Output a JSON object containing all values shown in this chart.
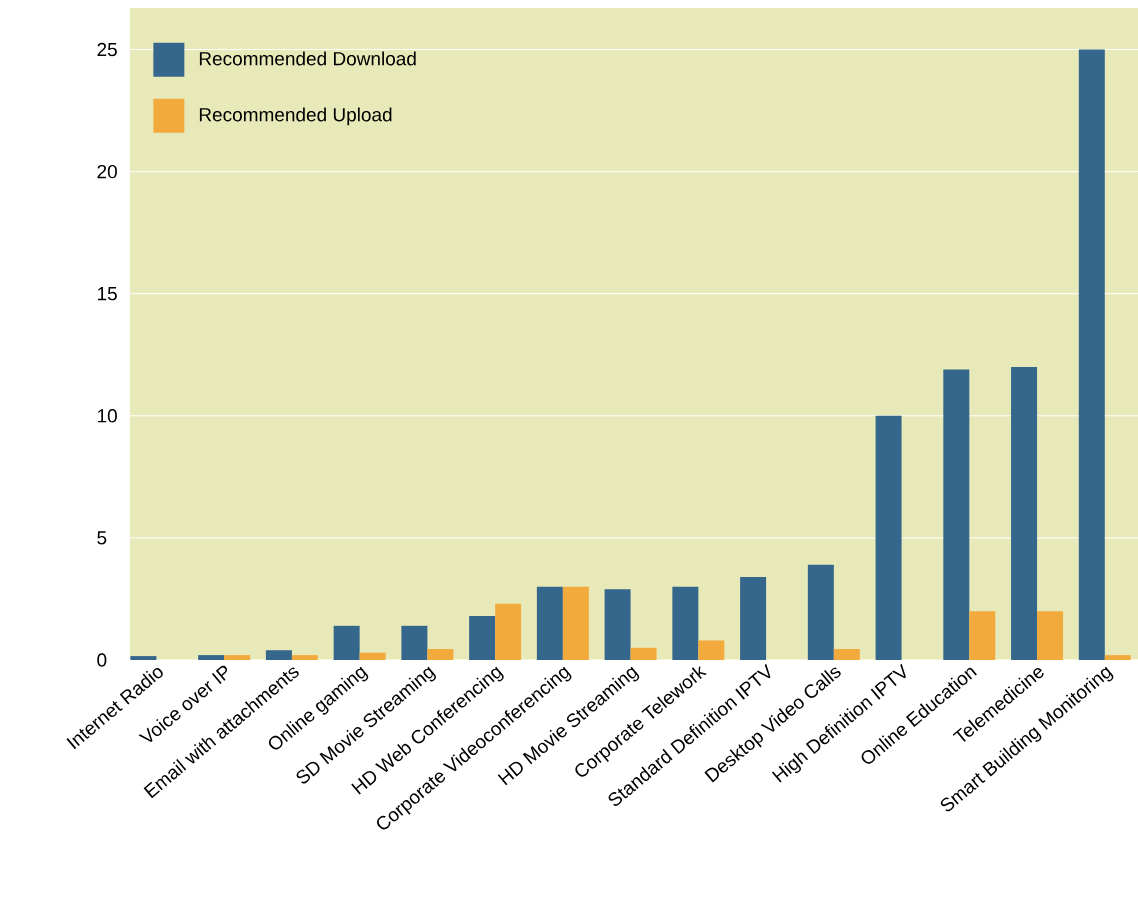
{
  "chart_data": {
    "type": "bar",
    "categories": [
      "Internet Radio",
      "Voice over IP",
      "Email with attachments",
      "Online gaming",
      "SD Movie Streaming",
      "HD Web Conferencing",
      "Corporate Videoconferencing",
      "HD Movie Streaming",
      "Corporate Telework",
      "Standard Definition IPTV",
      "Desktop Video Calls",
      "High Definition IPTV",
      "Online Education",
      "Telemedicine",
      "Smart Building Monitoring"
    ],
    "series": [
      {
        "name": "Recommended Download",
        "color": "#35668c",
        "values": [
          0.16,
          0.2,
          0.4,
          1.4,
          1.4,
          1.8,
          3.0,
          2.9,
          3.0,
          3.4,
          3.9,
          10,
          11.9,
          12,
          25
        ]
      },
      {
        "name": "Recommended Upload",
        "color": "#f3aa3d",
        "values": [
          null,
          0.2,
          0.2,
          0.3,
          0.45,
          2.3,
          3.0,
          0.5,
          0.8,
          null,
          0.45,
          null,
          2.0,
          2.0,
          0.2
        ]
      }
    ],
    "ylim": [
      0,
      26.7
    ],
    "yticks": [
      0,
      5,
      10,
      15,
      20,
      25
    ],
    "grid": "y",
    "legend": "top left"
  }
}
